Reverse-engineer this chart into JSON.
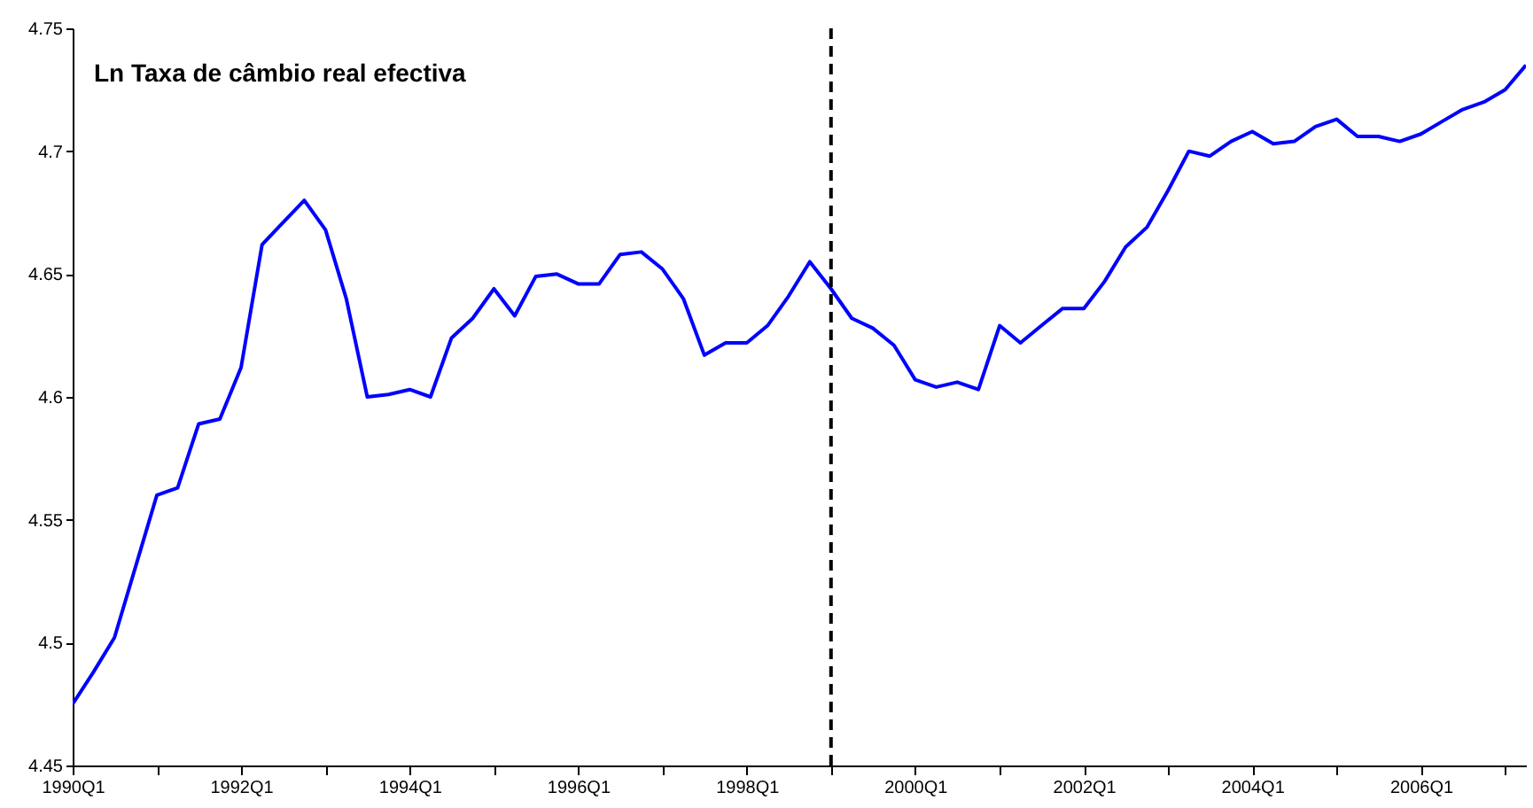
{
  "chart_data": {
    "type": "line",
    "title": "Ln Taxa de câmbio real efectiva",
    "x": [
      "1990-01",
      "1990-04",
      "1990-07",
      "1990-10",
      "1991-01",
      "1991-04",
      "1991-07",
      "1991-10",
      "1992-01",
      "1992-04",
      "1992-07",
      "1992-10",
      "1993-01",
      "1993-04",
      "1993-07",
      "1993-10",
      "1994-01",
      "1994-04",
      "1994-07",
      "1994-10",
      "1995-01",
      "1995-04",
      "1995-07",
      "1995-10",
      "1996-01",
      "1996-04",
      "1996-07",
      "1996-10",
      "1997-01",
      "1997-04",
      "1997-07",
      "1997-10",
      "1998-01",
      "1998-04",
      "1998-07",
      "1998-10",
      "1999-01",
      "1999-04",
      "1999-07",
      "1999-10",
      "2000-01",
      "2000-04",
      "2000-07",
      "2000-10",
      "2001-01",
      "2001-04",
      "2001-07",
      "2001-10",
      "2002-01",
      "2002-04",
      "2002-07",
      "2002-10",
      "2003-01",
      "2003-04",
      "2003-07",
      "2003-10",
      "2004-01",
      "2004-04",
      "2004-07",
      "2004-10",
      "2005-01",
      "2005-04",
      "2005-07",
      "2005-10",
      "2006-01",
      "2006-04",
      "2006-07",
      "2006-10",
      "2007-01",
      "2007-04"
    ],
    "series": [
      {
        "color": "#0000ff",
        "values": [
          4.475,
          4.488,
          4.502,
          4.531,
          4.56,
          4.563,
          4.589,
          4.591,
          4.612,
          4.662,
          4.671,
          4.68,
          4.668,
          4.64,
          4.6,
          4.601,
          4.603,
          4.6,
          4.624,
          4.632,
          4.644,
          4.633,
          4.649,
          4.65,
          4.646,
          4.646,
          4.658,
          4.659,
          4.652,
          4.64,
          4.617,
          4.622,
          4.622,
          4.629,
          4.641,
          4.655,
          4.644,
          4.632,
          4.628,
          4.621,
          4.607,
          4.604,
          4.606,
          4.603,
          4.629,
          4.622,
          4.629,
          4.636,
          4.636,
          4.647,
          4.661,
          4.669,
          4.684,
          4.7,
          4.698,
          4.704,
          4.708,
          4.703,
          4.704,
          4.71,
          4.713,
          4.706,
          4.706,
          4.704,
          4.707,
          4.712,
          4.717,
          4.72,
          4.725,
          4.735
        ]
      }
    ],
    "xlim": [
      "1990-01",
      "2007-04"
    ],
    "xticks": [
      {
        "value": "1990-01",
        "label": "1990Q1"
      },
      {
        "value": "1991-01",
        "label": null
      },
      {
        "value": "1992-01",
        "label": "1992Q1"
      },
      {
        "value": "1993-01",
        "label": null
      },
      {
        "value": "1994-01",
        "label": "1994Q1"
      },
      {
        "value": "1995-01",
        "label": null
      },
      {
        "value": "1996-01",
        "label": "1996Q1"
      },
      {
        "value": "1997-01",
        "label": null
      },
      {
        "value": "1998-01",
        "label": "1998Q1"
      },
      {
        "value": "1999-01",
        "label": null
      },
      {
        "value": "2000-01",
        "label": "2000Q1"
      },
      {
        "value": "2001-01",
        "label": null
      },
      {
        "value": "2002-01",
        "label": "2002Q1"
      },
      {
        "value": "2003-01",
        "label": null
      },
      {
        "value": "2004-01",
        "label": "2004Q1"
      },
      {
        "value": "2005-01",
        "label": null
      },
      {
        "value": "2006-01",
        "label": "2006Q1"
      },
      {
        "value": "2007-01",
        "label": null
      }
    ],
    "ylim": [
      4.45,
      4.75
    ],
    "yticks": [
      4.45,
      4.5,
      4.55,
      4.6,
      4.65,
      4.7,
      4.75
    ],
    "ref_lines": [
      {
        "axis": "x",
        "value": "1999-01",
        "color": "#000000",
        "line_style": "dashed"
      }
    ],
    "grid": false,
    "marker": "none",
    "line_style": "solid"
  }
}
